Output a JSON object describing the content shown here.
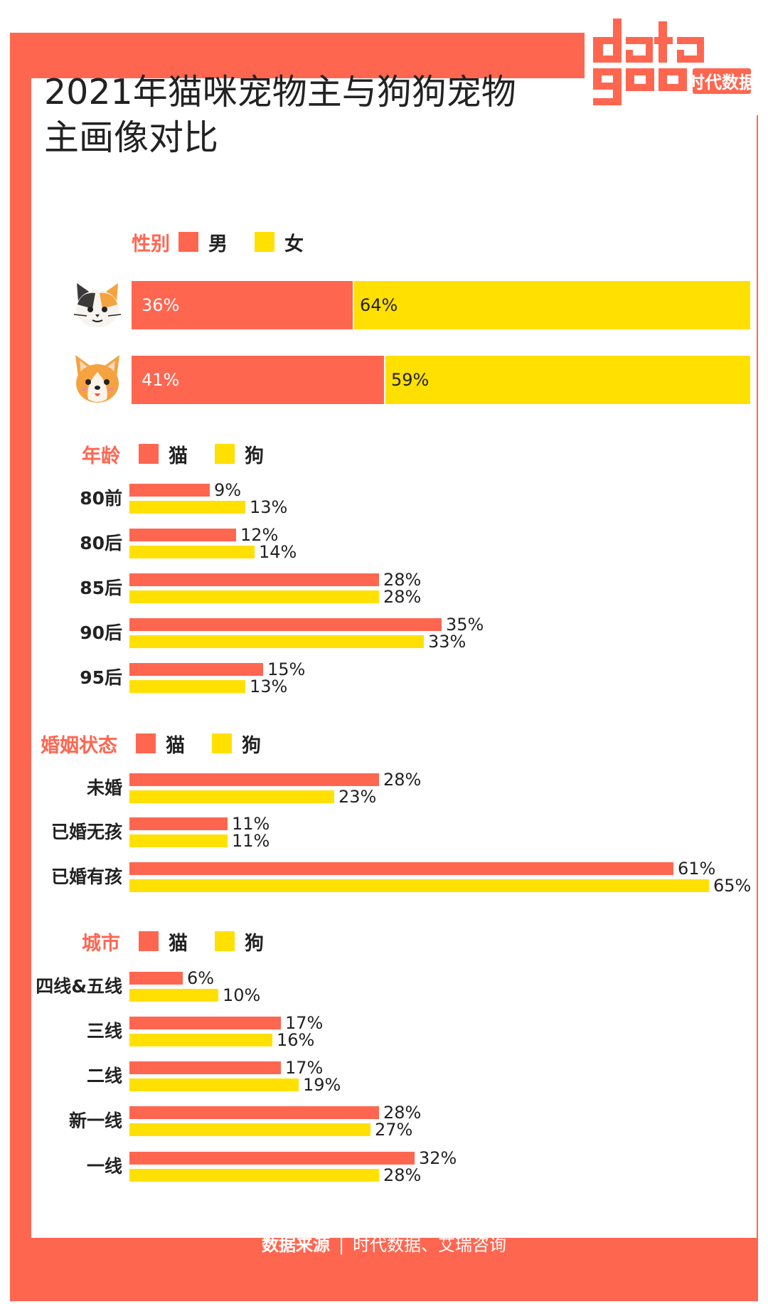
{
  "title": "2021年猫咪宠物主与狗狗宠物主画像对比",
  "title_lines": [
    "2021年猫咪宠物主与狗狗宠物",
    "主画像对比"
  ],
  "logo": {
    "text": "datagoo",
    "cn_text": "时代数据"
  },
  "colors": {
    "frame": "#ff6650",
    "cat": "#ff6650",
    "dog": "#ffe000",
    "accent_text": "#ff6650"
  },
  "icons": {
    "cat": "cat-face-icon",
    "dog": "dog-face-icon"
  },
  "gender": {
    "legend_title": "性别",
    "legend_items": [
      "男",
      "女"
    ],
    "rows": [
      {
        "pet": "cat",
        "male": 36,
        "female": 64,
        "male_label": "36%",
        "female_label": "64%"
      },
      {
        "pet": "dog",
        "male": 41,
        "female": 59,
        "male_label": "41%",
        "female_label": "59%"
      }
    ]
  },
  "sections": [
    {
      "key": "age",
      "legend_title": "年龄",
      "legend_items": [
        "猫",
        "狗"
      ],
      "categories": [
        "80前",
        "80后",
        "85后",
        "90后",
        "95后"
      ],
      "cat": [
        9,
        12,
        28,
        35,
        15
      ],
      "dog": [
        13,
        14,
        28,
        33,
        13
      ]
    },
    {
      "key": "marital",
      "legend_title": "婚姻状态",
      "legend_items": [
        "猫",
        "狗"
      ],
      "categories": [
        "未婚",
        "已婚无孩",
        "已婚有孩"
      ],
      "cat": [
        28,
        11,
        61
      ],
      "dog": [
        23,
        11,
        65
      ]
    },
    {
      "key": "city",
      "legend_title": "城市",
      "legend_items": [
        "猫",
        "狗"
      ],
      "categories": [
        "四线&五线",
        "三线",
        "二线",
        "新一线",
        "一线"
      ],
      "cat": [
        6,
        17,
        17,
        28,
        32
      ],
      "dog": [
        10,
        16,
        19,
        27,
        28
      ]
    }
  ],
  "chart_data": [
    {
      "type": "bar",
      "title": "性别",
      "categories": [
        "猫",
        "狗"
      ],
      "stacked": true,
      "series": [
        {
          "name": "男",
          "values": [
            36,
            41
          ]
        },
        {
          "name": "女",
          "values": [
            64,
            59
          ]
        }
      ]
    },
    {
      "type": "bar",
      "title": "年龄",
      "categories": [
        "80前",
        "80后",
        "85后",
        "90后",
        "95后"
      ],
      "series": [
        {
          "name": "猫",
          "values": [
            9,
            12,
            28,
            35,
            15
          ]
        },
        {
          "name": "狗",
          "values": [
            13,
            14,
            28,
            33,
            13
          ]
        }
      ]
    },
    {
      "type": "bar",
      "title": "婚姻状态",
      "categories": [
        "未婚",
        "已婚无孩",
        "已婚有孩"
      ],
      "series": [
        {
          "name": "猫",
          "values": [
            28,
            11,
            61
          ]
        },
        {
          "name": "狗",
          "values": [
            23,
            11,
            65
          ]
        }
      ]
    },
    {
      "type": "bar",
      "title": "城市",
      "categories": [
        "四线&五线",
        "三线",
        "二线",
        "新一线",
        "一线"
      ],
      "series": [
        {
          "name": "猫",
          "values": [
            6,
            17,
            17,
            28,
            32
          ]
        },
        {
          "name": "狗",
          "values": [
            10,
            16,
            19,
            27,
            28
          ]
        }
      ]
    }
  ],
  "footer": {
    "label": "数据来源",
    "separator": "|",
    "source": "时代数据、艾瑞咨询"
  }
}
